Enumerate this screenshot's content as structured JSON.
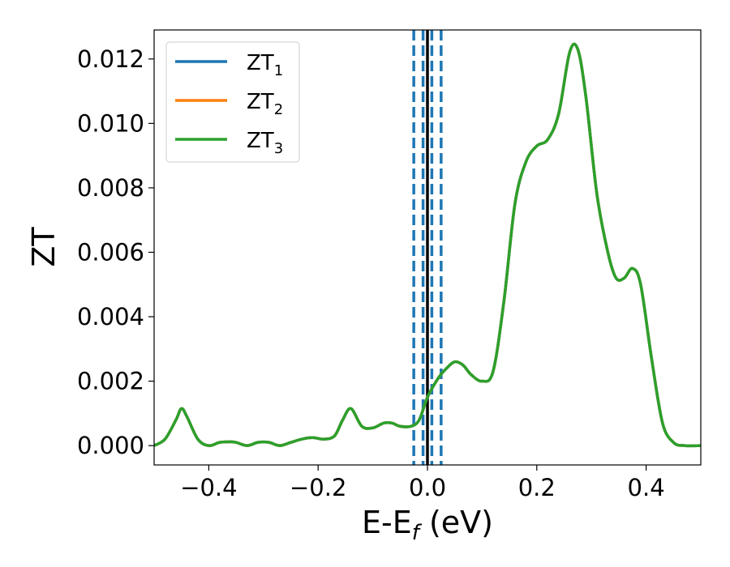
{
  "chart_data": {
    "type": "line",
    "xlabel": "E-E_f (eV)",
    "ylabel": "ZT",
    "xlim": [
      -0.5,
      0.5
    ],
    "ylim": [
      -0.0006,
      0.0129
    ],
    "xticks": [
      -0.4,
      -0.2,
      0.0,
      0.2,
      0.4
    ],
    "xtick_labels": [
      "−0.4",
      "−0.2",
      "0.0",
      "0.2",
      "0.4"
    ],
    "yticks": [
      0.0,
      0.002,
      0.004,
      0.006,
      0.008,
      0.01,
      0.012
    ],
    "ytick_labels": [
      "0.000",
      "0.002",
      "0.004",
      "0.006",
      "0.008",
      "0.010",
      "0.012"
    ],
    "grid": false,
    "legend_placement": "top-left",
    "vlines": [
      {
        "x": 0.0,
        "style": "solid",
        "color": "#000000"
      },
      {
        "x": -0.025,
        "style": "dashed",
        "color": "#1f77b4"
      },
      {
        "x": -0.008,
        "style": "dashed",
        "color": "#1f77b4"
      },
      {
        "x": 0.008,
        "style": "dashed",
        "color": "#1f77b4"
      },
      {
        "x": 0.025,
        "style": "dashed",
        "color": "#1f77b4"
      }
    ],
    "series": [
      {
        "name": "ZT1",
        "color": "#1f77b4",
        "x": [
          -0.5,
          -0.48,
          -0.46,
          -0.45,
          -0.44,
          -0.42,
          -0.4,
          -0.38,
          -0.36,
          -0.35,
          -0.33,
          -0.31,
          -0.29,
          -0.27,
          -0.25,
          -0.23,
          -0.21,
          -0.19,
          -0.17,
          -0.155,
          -0.14,
          -0.12,
          -0.1,
          -0.08,
          -0.065,
          -0.05,
          -0.03,
          -0.015,
          0.0,
          0.02,
          0.035,
          0.05,
          0.065,
          0.08,
          0.1,
          0.12,
          0.14,
          0.16,
          0.18,
          0.2,
          0.22,
          0.24,
          0.26,
          0.275,
          0.29,
          0.31,
          0.33,
          0.345,
          0.36,
          0.375,
          0.39,
          0.41,
          0.43,
          0.45,
          0.47,
          0.5
        ],
        "y": [
          0.0,
          0.0002,
          0.0008,
          0.00115,
          0.0009,
          0.0002,
          0.0,
          0.0001,
          0.00012,
          0.0001,
          0.0,
          0.0001,
          0.0001,
          0.0,
          0.0001,
          0.0002,
          0.00025,
          0.0002,
          0.0003,
          0.0008,
          0.00115,
          0.0006,
          0.00055,
          0.0007,
          0.0007,
          0.0006,
          0.0006,
          0.0008,
          0.0015,
          0.0021,
          0.0024,
          0.0026,
          0.0025,
          0.0022,
          0.002,
          0.0023,
          0.0045,
          0.0075,
          0.0088,
          0.0093,
          0.0095,
          0.0103,
          0.0122,
          0.0123,
          0.0108,
          0.0078,
          0.006,
          0.0052,
          0.0052,
          0.0055,
          0.005,
          0.0027,
          0.0007,
          0.0001,
          0.0,
          0.0
        ]
      },
      {
        "name": "ZT2",
        "color": "#ff7f0e",
        "x": [
          -0.5,
          -0.48,
          -0.46,
          -0.45,
          -0.44,
          -0.42,
          -0.4,
          -0.38,
          -0.36,
          -0.35,
          -0.33,
          -0.31,
          -0.29,
          -0.27,
          -0.25,
          -0.23,
          -0.21,
          -0.19,
          -0.17,
          -0.155,
          -0.14,
          -0.12,
          -0.1,
          -0.08,
          -0.065,
          -0.05,
          -0.03,
          -0.015,
          0.0,
          0.02,
          0.035,
          0.05,
          0.065,
          0.08,
          0.1,
          0.12,
          0.14,
          0.16,
          0.18,
          0.2,
          0.22,
          0.24,
          0.26,
          0.275,
          0.29,
          0.31,
          0.33,
          0.345,
          0.36,
          0.375,
          0.39,
          0.41,
          0.43,
          0.45,
          0.47,
          0.5
        ],
        "y": [
          0.0,
          0.0002,
          0.0008,
          0.00115,
          0.0009,
          0.0002,
          0.0,
          0.0001,
          0.00012,
          0.0001,
          0.0,
          0.0001,
          0.0001,
          0.0,
          0.0001,
          0.0002,
          0.00025,
          0.0002,
          0.0003,
          0.0008,
          0.00115,
          0.0006,
          0.00055,
          0.0007,
          0.0007,
          0.0006,
          0.0006,
          0.0008,
          0.0015,
          0.0021,
          0.0024,
          0.0026,
          0.0025,
          0.0022,
          0.002,
          0.0023,
          0.0045,
          0.0075,
          0.0088,
          0.0093,
          0.0095,
          0.0103,
          0.0122,
          0.0123,
          0.0108,
          0.0078,
          0.006,
          0.0052,
          0.0052,
          0.0055,
          0.005,
          0.0027,
          0.0007,
          0.0001,
          0.0,
          0.0
        ]
      },
      {
        "name": "ZT3",
        "color": "#2ca02c",
        "x": [
          -0.5,
          -0.48,
          -0.46,
          -0.45,
          -0.44,
          -0.42,
          -0.4,
          -0.38,
          -0.36,
          -0.35,
          -0.33,
          -0.31,
          -0.29,
          -0.27,
          -0.25,
          -0.23,
          -0.21,
          -0.19,
          -0.17,
          -0.155,
          -0.14,
          -0.12,
          -0.1,
          -0.08,
          -0.065,
          -0.05,
          -0.03,
          -0.015,
          0.0,
          0.02,
          0.035,
          0.05,
          0.065,
          0.08,
          0.1,
          0.12,
          0.14,
          0.16,
          0.18,
          0.2,
          0.22,
          0.24,
          0.26,
          0.275,
          0.29,
          0.31,
          0.33,
          0.345,
          0.36,
          0.375,
          0.39,
          0.41,
          0.43,
          0.45,
          0.47,
          0.5
        ],
        "y": [
          0.0,
          0.0002,
          0.0008,
          0.00115,
          0.0009,
          0.0002,
          0.0,
          0.0001,
          0.00012,
          0.0001,
          0.0,
          0.0001,
          0.0001,
          0.0,
          0.0001,
          0.0002,
          0.00025,
          0.0002,
          0.0003,
          0.0008,
          0.00115,
          0.0006,
          0.00055,
          0.0007,
          0.0007,
          0.0006,
          0.0006,
          0.0008,
          0.0015,
          0.0021,
          0.0024,
          0.0026,
          0.0025,
          0.0022,
          0.002,
          0.0023,
          0.0045,
          0.0075,
          0.0088,
          0.0093,
          0.0095,
          0.0103,
          0.0122,
          0.0123,
          0.0108,
          0.0078,
          0.006,
          0.0052,
          0.0052,
          0.0055,
          0.005,
          0.0027,
          0.0007,
          0.0001,
          0.0,
          0.0
        ]
      }
    ]
  }
}
